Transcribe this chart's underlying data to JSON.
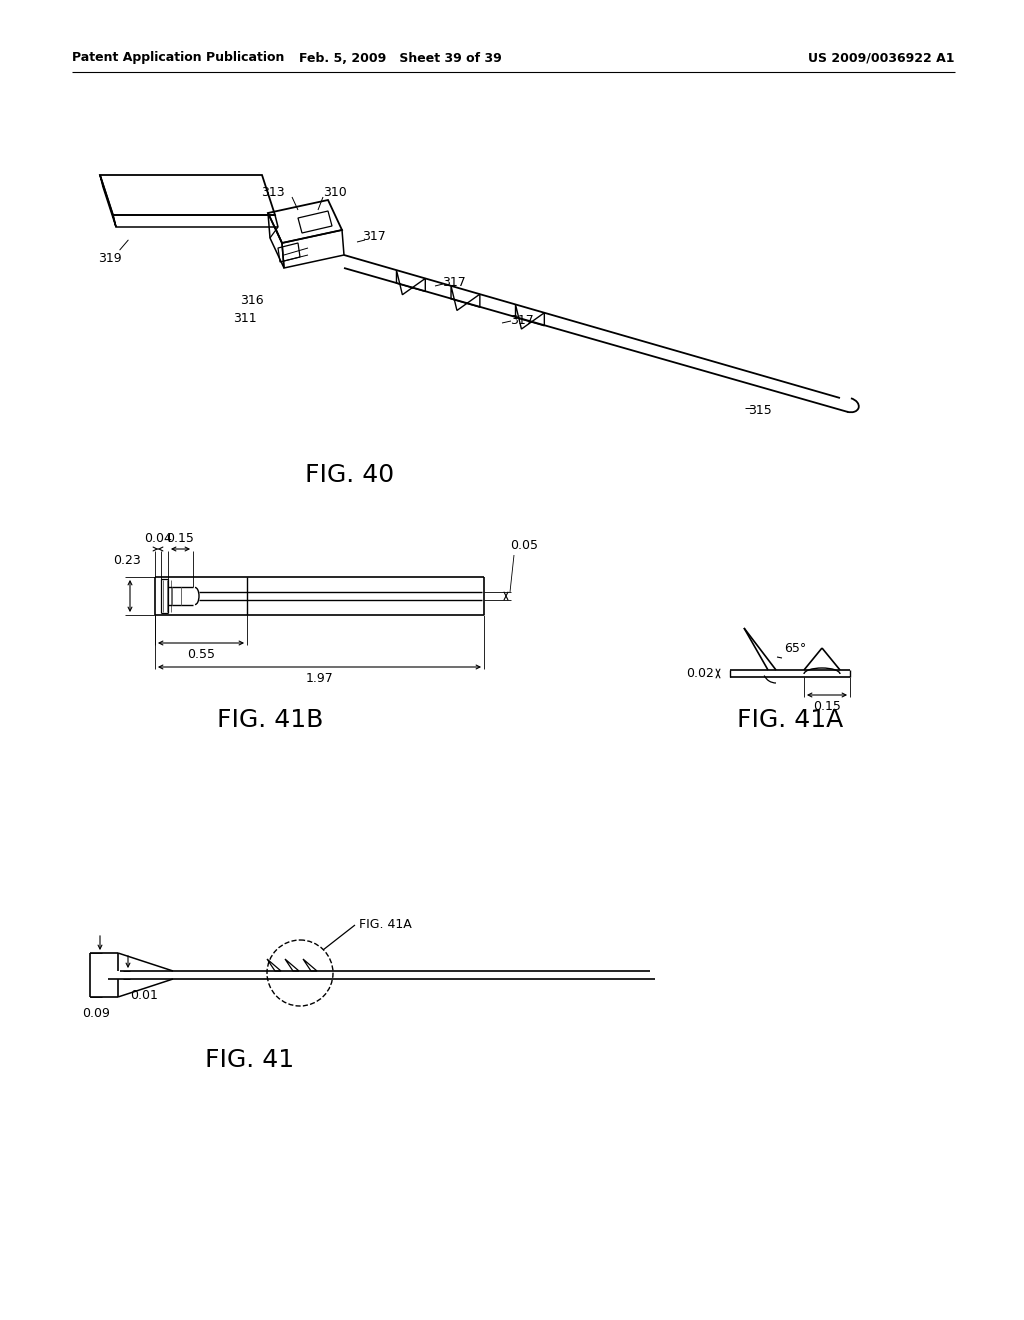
{
  "bg_color": "#ffffff",
  "header_left": "Patent Application Publication",
  "header_mid": "Feb. 5, 2009   Sheet 39 of 39",
  "header_right": "US 2009/0036922 A1",
  "fig40_label": "FIG. 40",
  "fig41a_label": "FIG. 41A",
  "fig41b_label": "FIG. 41B",
  "fig41_label": "FIG. 41",
  "dim_41b_023": "0.23",
  "dim_41b_004": "0.04",
  "dim_41b_015": "0.15",
  "dim_41b_005": "0.05",
  "dim_41b_055": "0.55",
  "dim_41b_197": "1.97",
  "dim_41a_65": "65°",
  "dim_41a_002": "0.02",
  "dim_41a_015": "0.15",
  "dim_41_009": "0.09",
  "dim_41_001": "0.01",
  "label_319": "319",
  "label_313": "313",
  "label_310": "310",
  "label_317a": "317",
  "label_317b": "317",
  "label_317c": "317",
  "label_316": "316",
  "label_311": "311",
  "label_315": "315"
}
